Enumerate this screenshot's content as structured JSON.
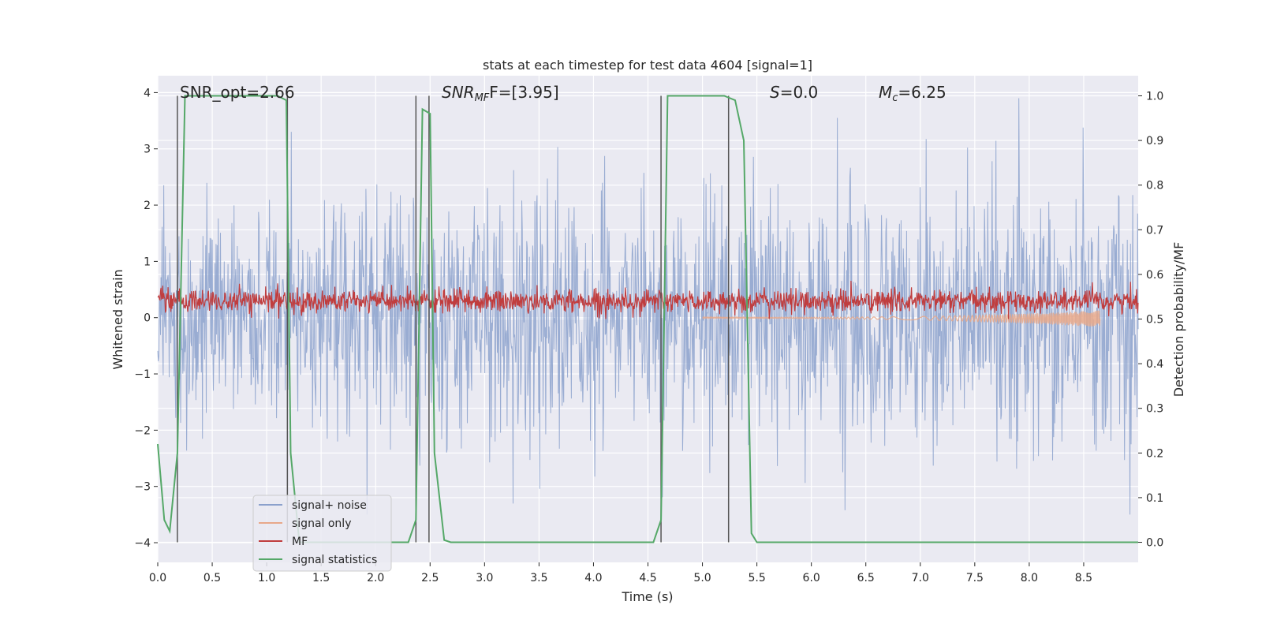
{
  "chart_data": {
    "type": "line",
    "title": "stats at each timestep for test data 4604 [signal=1]",
    "xlabel": "Time (s)",
    "ylabel_left": "Whitened strain",
    "ylabel_right": "Detection probability/MF",
    "xlim": [
      0.0,
      9.0
    ],
    "ylim_left": [
      -4.35,
      4.3
    ],
    "ylim_right": [
      -0.045,
      1.045
    ],
    "x_ticks": [
      0.0,
      0.5,
      1.0,
      1.5,
      2.0,
      2.5,
      3.0,
      3.5,
      4.0,
      4.5,
      5.0,
      5.5,
      6.0,
      6.5,
      7.0,
      7.5,
      8.0,
      8.5
    ],
    "x_tick_labels": [
      "0.0",
      "0.5",
      "1.0",
      "1.5",
      "2.0",
      "2.5",
      "3.0",
      "3.5",
      "4.0",
      "4.5",
      "5.0",
      "5.5",
      "6.0",
      "6.5",
      "7.0",
      "7.5",
      "8.0",
      "8.5"
    ],
    "y_left_ticks": [
      4,
      3,
      2,
      1,
      0,
      -1,
      -2,
      -3,
      -4
    ],
    "y_left_tick_labels": [
      "4",
      "3",
      "2",
      "1",
      "0",
      "−1",
      "−2",
      "−3",
      "−4"
    ],
    "y_right_ticks": [
      1.0,
      0.9,
      0.8,
      0.7,
      0.6,
      0.5,
      0.4,
      0.3,
      0.2,
      0.1,
      0.0
    ],
    "y_right_tick_labels": [
      "1.0",
      "0.9",
      "0.8",
      "0.7",
      "0.6",
      "0.5",
      "0.4",
      "0.3",
      "0.2",
      "0.1",
      "0.0"
    ],
    "annotations": {
      "snr_opt": "SNR_opt=2.66",
      "snr_mf_main": "SNR",
      "snr_mf_sub": "MF",
      "snr_mf_rest": "F=[3.95]",
      "s_main": "S",
      "s_rest": "=0.0",
      "mc_main": "M",
      "mc_sub": "c",
      "mc_rest": "=6.25"
    },
    "legend": {
      "position": "lower-left",
      "entries": [
        {
          "label": "signal+ noise",
          "color": "#8ba1cc"
        },
        {
          "label": "signal only",
          "color": "#e8a88a"
        },
        {
          "label": "MF",
          "color": "#c03d3e"
        },
        {
          "label": "signal statistics",
          "color": "#55a868"
        }
      ]
    },
    "vertical_lines_x": [
      0.18,
      1.19,
      2.37,
      2.49,
      4.62,
      5.24
    ],
    "series": [
      {
        "name": "signal statistics",
        "axis": "right",
        "color": "#55a868",
        "x": [
          0.0,
          0.06,
          0.11,
          0.18,
          0.25,
          1.1,
          1.18,
          1.22,
          1.3,
          1.5,
          2.0,
          2.3,
          2.37,
          2.43,
          2.5,
          2.54,
          2.63,
          2.69,
          4.0,
          4.55,
          4.62,
          4.68,
          5.2,
          5.3,
          5.38,
          5.45,
          5.5,
          9.0
        ],
        "y": [
          0.22,
          0.05,
          0.025,
          0.2,
          1.0,
          1.0,
          0.99,
          0.2,
          0.0,
          0.0,
          0.0,
          0.0,
          0.05,
          0.97,
          0.96,
          0.2,
          0.005,
          0.0,
          0.0,
          0.0,
          0.05,
          1.0,
          1.0,
          0.99,
          0.9,
          0.02,
          0.0,
          0.0
        ]
      },
      {
        "name": "signal only",
        "axis": "left",
        "color": "#e8a88a",
        "x": [
          5.0,
          6.0,
          7.0,
          7.5,
          8.0,
          8.3,
          8.5,
          8.65
        ],
        "y": [
          0.0,
          0.0,
          -0.01,
          -0.03,
          -0.06,
          -0.1,
          -0.15,
          -0.2
        ],
        "note": "chirp envelope, amplitude grows toward ~8.65 s"
      },
      {
        "name": "signal+ noise",
        "axis": "left",
        "color": "#8ba1cc",
        "description_range": [
          -3.5,
          3.9
        ],
        "n_samples": 1800,
        "approx_std": 1.0
      },
      {
        "name": "MF",
        "axis": "right",
        "color": "#c03d3e",
        "range": [
          0.5,
          0.58
        ],
        "n_samples": 1800
      }
    ]
  }
}
